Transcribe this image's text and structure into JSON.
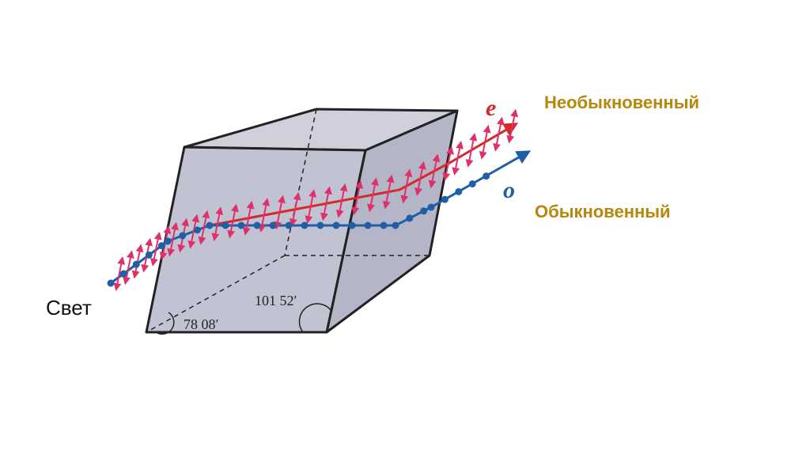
{
  "labels": {
    "extraordinary": "Необыкновенный",
    "ordinary": "Обыкновенный",
    "light": "Свет"
  },
  "rays": {
    "e": "e",
    "o": "o"
  },
  "angles": {
    "acute": "78 08′",
    "obtuse": "101 52′"
  }
}
